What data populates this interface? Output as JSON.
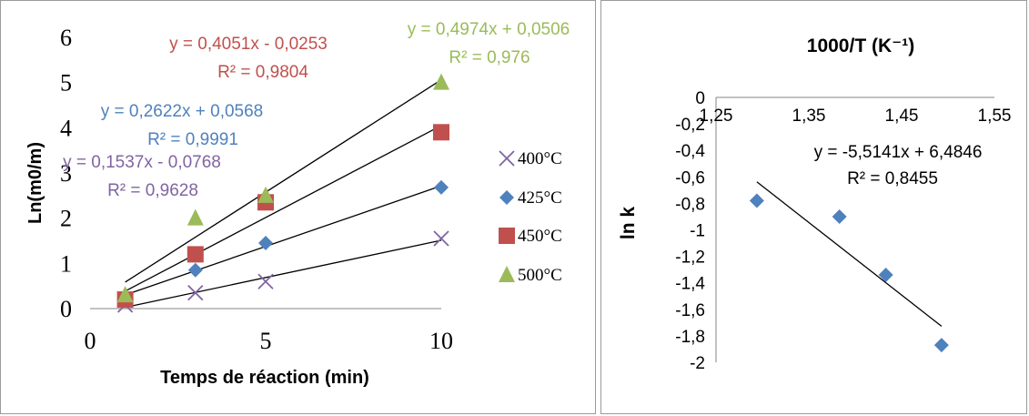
{
  "colors": {
    "c400": "#8064A2",
    "c425": "#4F81BD",
    "c450": "#C0504D",
    "c500": "#9BBB59",
    "axis": "#868686",
    "fit": "#000000"
  },
  "chart_data": [
    {
      "type": "scatter",
      "xlabel": "Temps de réaction (min)",
      "ylabel": "Ln(m0/m)",
      "xlim": [
        0,
        10
      ],
      "ylim": [
        0,
        6
      ],
      "x_ticks": [
        "0",
        "5",
        "10"
      ],
      "y_ticks": [
        "0",
        "1",
        "2",
        "3",
        "4",
        "5",
        "6"
      ],
      "legend_position": "right",
      "trendlines": "linear",
      "series": [
        {
          "name": "400°C",
          "marker": "x",
          "x": [
            1,
            3,
            5,
            10
          ],
          "y": [
            0.08,
            0.35,
            0.6,
            1.55
          ],
          "equation": "y = 0,1537x - 0,0768",
          "r2": "R² = 0,9628"
        },
        {
          "name": "425°C",
          "marker": "diamond",
          "x": [
            1,
            3,
            5,
            10
          ],
          "y": [
            0.25,
            0.85,
            1.45,
            2.68
          ],
          "equation": "y = 0,2622x + 0,0568",
          "r2": "R² = 0,9991"
        },
        {
          "name": "450°C",
          "marker": "square",
          "x": [
            1,
            3,
            5,
            10
          ],
          "y": [
            0.2,
            1.2,
            2.35,
            3.9
          ],
          "equation": "y = 0,4051x - 0,0253",
          "r2": "R² = 0,9804"
        },
        {
          "name": "500°C",
          "marker": "triangle",
          "x": [
            1,
            3,
            5,
            10
          ],
          "y": [
            0.3,
            2.0,
            2.5,
            5.0
          ],
          "equation": "y = 0,4974x + 0,0506",
          "r2": "R² = 0,976"
        }
      ]
    },
    {
      "type": "scatter",
      "title": "1000/T (K⁻¹)",
      "ylabel": "ln k",
      "x_axis_position": "top",
      "xlim": [
        1.25,
        1.55
      ],
      "ylim": [
        -2,
        0
      ],
      "x_ticks": [
        "1,25",
        "1,35",
        "1,45",
        "1,55"
      ],
      "y_ticks": [
        "0",
        "-0,2",
        "-0,4",
        "-0,6",
        "-0,8",
        "-1",
        "-1,2",
        "-1,4",
        "-1,6",
        "-1,8",
        "-2"
      ],
      "trendlines": "linear",
      "series": [
        {
          "marker": "diamond",
          "x": [
            1.294,
            1.383,
            1.433,
            1.493
          ],
          "y": [
            -0.78,
            -0.9,
            -1.34,
            -1.87
          ],
          "equation": "y = -5,5141x + 6,4846",
          "r2": "R² = 0,8455"
        }
      ]
    }
  ]
}
